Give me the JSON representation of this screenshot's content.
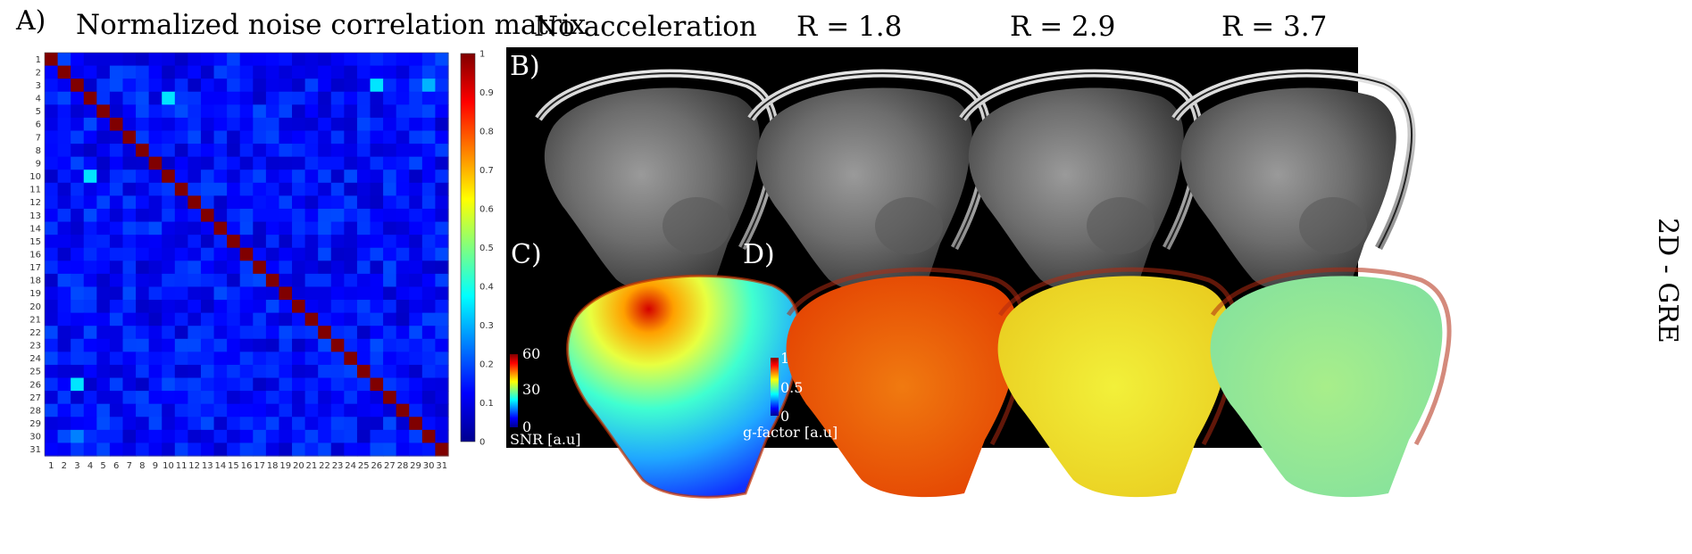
{
  "panel_a": {
    "label": "A)",
    "title": "Normalized noise correlation matrix",
    "colorbar_ticks": [
      "0",
      "0.1",
      "0.2",
      "0.3",
      "0.4",
      "0.5",
      "0.6",
      "0.7",
      "0.8",
      "0.9",
      "1"
    ]
  },
  "columns": [
    "No acceleration",
    "R = 1.8",
    "R = 2.9",
    "R = 3.7"
  ],
  "side_label": "2D - GRE",
  "panel_b": {
    "label": "B)"
  },
  "panel_c": {
    "label": "C)",
    "scale_max": "60",
    "scale_mid": "30",
    "scale_min": "0",
    "caption": "SNR [a.u]"
  },
  "panel_d": {
    "label": "D)",
    "scale_max": "1",
    "scale_mid": "0.5",
    "scale_min": "0",
    "caption": "g-factor [a.u]"
  },
  "chart_data": {
    "type": "heatmap",
    "title": "Normalized noise correlation matrix",
    "size": 31,
    "x_ticks": [
      1,
      2,
      3,
      4,
      5,
      6,
      7,
      8,
      9,
      10,
      11,
      12,
      13,
      14,
      15,
      16,
      17,
      18,
      19,
      20,
      21,
      22,
      23,
      24,
      25,
      26,
      27,
      28,
      29,
      30,
      31
    ],
    "y_ticks": [
      1,
      2,
      3,
      4,
      5,
      6,
      7,
      8,
      9,
      10,
      11,
      12,
      13,
      14,
      15,
      16,
      17,
      18,
      19,
      20,
      21,
      22,
      23,
      24,
      25,
      26,
      27,
      28,
      29,
      30,
      31
    ],
    "diagonal_value": 1.0,
    "typical_offdiagonal": 0.15,
    "highlights": [
      {
        "i": 3,
        "j": 26,
        "value": 0.35
      },
      {
        "i": 26,
        "j": 3,
        "value": 0.35
      },
      {
        "i": 4,
        "j": 10,
        "value": 0.35
      },
      {
        "i": 10,
        "j": 4,
        "value": 0.35
      },
      {
        "i": 3,
        "j": 30,
        "value": 0.3
      },
      {
        "i": 30,
        "j": 3,
        "value": 0.25
      }
    ],
    "colorbar_range": [
      0,
      1
    ]
  }
}
